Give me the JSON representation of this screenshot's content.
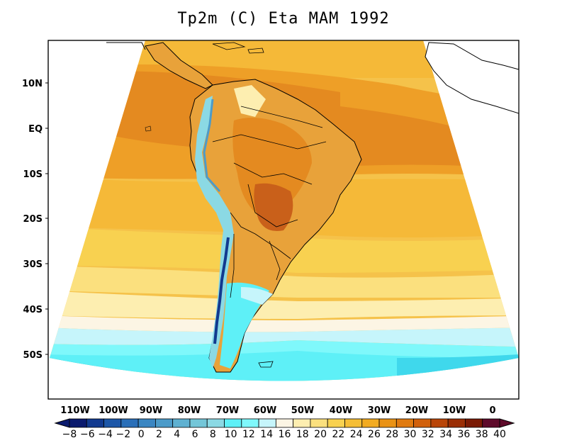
{
  "title": "Tp2m (C) Eta MAM 1992",
  "lat_labels": [
    "10N",
    "EQ",
    "10S",
    "20S",
    "30S",
    "40S",
    "50S"
  ],
  "lon_labels": [
    "110W",
    "100W",
    "90W",
    "80W",
    "70W",
    "60W",
    "50W",
    "40W",
    "30W",
    "20W",
    "10W",
    "0"
  ],
  "colorbar": {
    "labels": [
      "−8",
      "−6",
      "−4",
      "−2",
      "0",
      "2",
      "4",
      "6",
      "8",
      "10",
      "12",
      "14",
      "16",
      "18",
      "20",
      "22",
      "24",
      "26",
      "28",
      "30",
      "32",
      "34",
      "36",
      "38",
      "40"
    ],
    "colors": [
      "#0a1a6e",
      "#123a8f",
      "#1d57a8",
      "#2a6fb8",
      "#3a86c2",
      "#4c9bc9",
      "#5fb1d1",
      "#74c6d8",
      "#8bd9e4",
      "#5ef0f7",
      "#7ff8fb",
      "#c6f5fb",
      "#fcf5e4",
      "#fdeeb0",
      "#fbe07e",
      "#f8d150",
      "#f5be36",
      "#f2ab21",
      "#e99215",
      "#e07a10",
      "#d1600b",
      "#b94508",
      "#9a2e05",
      "#7a1a04",
      "#5e0a2a"
    ]
  },
  "colors": {
    "warm_land": "#e8a23a",
    "hot_core": "#c9601a",
    "ocean_tropical": "#f0b02e",
    "ocean_subtropical": "#fbdc6e",
    "ocean_cool": "#c6f5fb",
    "ocean_cold": "#5ef0f7",
    "andes_cold": "#2a6fb8",
    "border": "#000000"
  }
}
